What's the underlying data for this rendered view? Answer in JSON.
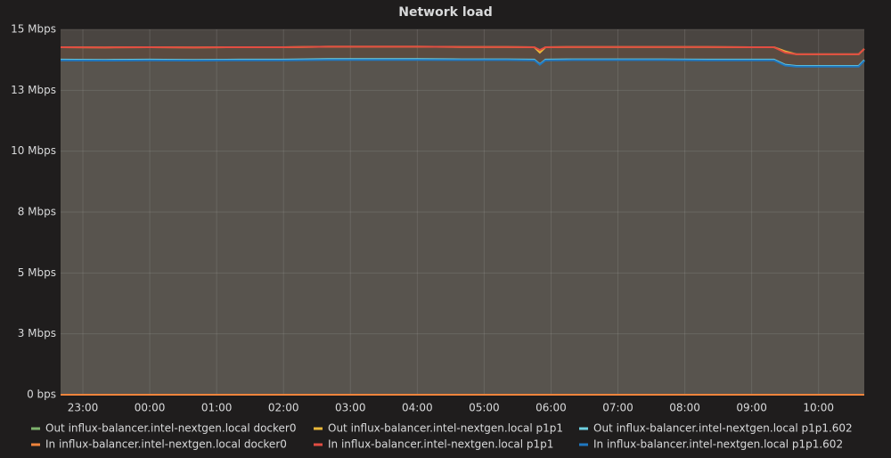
{
  "chart_data": {
    "type": "line",
    "title": "Network load",
    "x": [
      "22:40",
      "23:20",
      "00:00",
      "00:40",
      "01:20",
      "02:00",
      "02:40",
      "03:20",
      "04:00",
      "04:40",
      "05:20",
      "05:45",
      "05:50",
      "05:55",
      "06:20",
      "07:00",
      "07:40",
      "08:20",
      "09:00",
      "09:20",
      "09:30",
      "09:40",
      "10:00",
      "10:20",
      "10:36",
      "10:41"
    ],
    "xlim": [
      "22:40",
      "10:41"
    ],
    "xticks": [
      "23:00",
      "00:00",
      "01:00",
      "02:00",
      "03:00",
      "04:00",
      "05:00",
      "06:00",
      "07:00",
      "08:00",
      "09:00",
      "10:00"
    ],
    "ylim": [
      0,
      15
    ],
    "yticks": [
      {
        "value": 0,
        "label": "0 bps"
      },
      {
        "value": 2.5,
        "label": "3 Mbps"
      },
      {
        "value": 5,
        "label": "5 Mbps"
      },
      {
        "value": 7.5,
        "label": "8 Mbps"
      },
      {
        "value": 10,
        "label": "10 Mbps"
      },
      {
        "value": 12.5,
        "label": "13 Mbps"
      },
      {
        "value": 15,
        "label": "15 Mbps"
      }
    ],
    "grid": true,
    "legend": "bottom",
    "series": [
      {
        "name": "Out influx-balancer.intel-nextgen.local docker0",
        "color": "#7eb26d",
        "values": [
          0,
          0,
          0,
          0,
          0,
          0,
          0,
          0,
          0,
          0,
          0,
          0,
          0,
          0,
          0,
          0,
          0,
          0,
          0,
          0,
          0,
          0,
          0,
          0,
          0,
          0
        ]
      },
      {
        "name": "Out influx-balancer.intel-nextgen.local p1p1",
        "color": "#eab839",
        "values": [
          14.27,
          14.26,
          14.27,
          14.26,
          14.27,
          14.27,
          14.29,
          14.29,
          14.29,
          14.28,
          14.28,
          14.27,
          14.05,
          14.27,
          14.28,
          14.28,
          14.28,
          14.28,
          14.27,
          14.27,
          14.1,
          13.98,
          13.98,
          13.98,
          13.98,
          14.2
        ]
      },
      {
        "name": "Out influx-balancer.intel-nextgen.local p1p1.602",
        "color": "#6ed0e0",
        "values": [
          13.76,
          13.75,
          13.76,
          13.75,
          13.76,
          13.76,
          13.78,
          13.78,
          13.78,
          13.77,
          13.77,
          13.76,
          13.57,
          13.76,
          13.77,
          13.77,
          13.77,
          13.76,
          13.76,
          13.76,
          13.55,
          13.5,
          13.5,
          13.5,
          13.5,
          13.74
        ]
      },
      {
        "name": "In influx-balancer.intel-nextgen.local docker0",
        "color": "#ef843c",
        "values": [
          0,
          0,
          0,
          0,
          0,
          0,
          0,
          0,
          0,
          0,
          0,
          0,
          0,
          0,
          0,
          0,
          0,
          0,
          0,
          0,
          0,
          0,
          0,
          0,
          0,
          0
        ]
      },
      {
        "name": "In influx-balancer.intel-nextgen.local p1p1",
        "color": "#e24d42",
        "values": [
          14.27,
          14.26,
          14.27,
          14.26,
          14.27,
          14.27,
          14.29,
          14.29,
          14.29,
          14.28,
          14.28,
          14.27,
          14.15,
          14.27,
          14.28,
          14.28,
          14.28,
          14.28,
          14.27,
          14.27,
          14.05,
          13.98,
          13.98,
          13.98,
          13.98,
          14.2
        ]
      },
      {
        "name": "In influx-balancer.intel-nextgen.local p1p1.602",
        "color": "#1f78c1",
        "values": [
          13.73,
          13.72,
          13.73,
          13.72,
          13.73,
          13.73,
          13.75,
          13.75,
          13.75,
          13.74,
          13.74,
          13.73,
          13.55,
          13.73,
          13.74,
          13.74,
          13.74,
          13.73,
          13.73,
          13.73,
          13.52,
          13.47,
          13.47,
          13.47,
          13.47,
          13.71
        ]
      }
    ]
  }
}
